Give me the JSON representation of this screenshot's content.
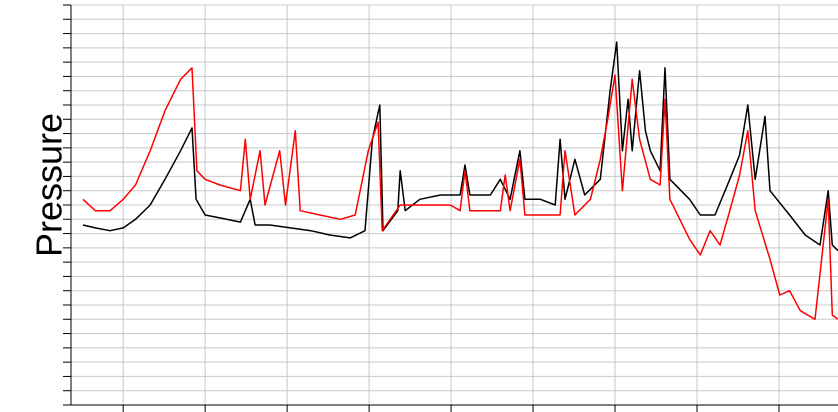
{
  "chart_data": {
    "type": "line",
    "ylabel": "Pressure",
    "xlim": [
      -0.49,
      8.72
    ],
    "xticks": [
      0,
      1,
      2,
      3,
      4,
      5,
      6,
      7,
      8
    ],
    "ylim": [
      0,
      14
    ],
    "yticks": [
      0,
      0.5,
      1,
      1.5,
      2,
      2.5,
      3,
      3.5,
      4,
      4.5,
      5,
      5.5,
      6,
      6.5,
      7,
      7.5,
      8,
      8.5,
      9,
      9.5,
      10,
      10.5,
      11,
      11.5,
      12,
      12.5,
      13,
      13.5,
      14
    ],
    "grid": true,
    "series": [
      {
        "color": "#000000",
        "x": [
          -0.49,
          -0.34,
          -0.16,
          0,
          0.15,
          0.33,
          0.51,
          0.7,
          0.84,
          0.89,
          1.0,
          1.18,
          1.43,
          1.55,
          1.61,
          1.79,
          2.04,
          2.29,
          2.52,
          2.77,
          2.95,
          3.04,
          3.13,
          3.17,
          3.35,
          3.38,
          3.44,
          3.62,
          3.87,
          4.11,
          4.17,
          4.23,
          4.48,
          4.6,
          4.72,
          4.84,
          4.9,
          5.09,
          5.27,
          5.33,
          5.39,
          5.51,
          5.63,
          5.82,
          5.94,
          6.02,
          6.09,
          6.16,
          6.21,
          6.3,
          6.37,
          6.43,
          6.55,
          6.61,
          6.67,
          6.91,
          7.04,
          7.22,
          7.4,
          7.52,
          7.62,
          7.71,
          7.83,
          7.89,
          8.13,
          8.32,
          8.5,
          8.6,
          8.65,
          8.72
        ],
        "values": [
          6.3,
          6.2,
          6.1,
          6.2,
          6.5,
          7.0,
          7.9,
          8.9,
          9.7,
          7.2,
          6.65,
          6.55,
          6.4,
          7.2,
          6.3,
          6.3,
          6.2,
          6.1,
          5.95,
          5.85,
          6.1,
          9.3,
          10.5,
          6.1,
          6.8,
          8.2,
          6.8,
          7.2,
          7.35,
          7.35,
          8.4,
          7.35,
          7.35,
          7.9,
          7.2,
          8.9,
          7.2,
          7.2,
          7.0,
          9.3,
          7.2,
          8.6,
          7.35,
          7.9,
          11.0,
          12.7,
          8.9,
          10.7,
          8.9,
          11.7,
          9.6,
          8.9,
          8.2,
          11.8,
          7.9,
          7.2,
          6.65,
          6.65,
          7.9,
          8.75,
          10.5,
          7.9,
          10.1,
          7.5,
          6.65,
          5.95,
          5.6,
          7.5,
          5.6,
          5.4
        ]
      },
      {
        "color": "#ff0000",
        "x": [
          -0.49,
          -0.34,
          -0.16,
          0,
          0.15,
          0.33,
          0.51,
          0.7,
          0.84,
          0.9,
          1.0,
          1.18,
          1.43,
          1.49,
          1.55,
          1.67,
          1.73,
          1.91,
          1.98,
          2.1,
          2.16,
          2.4,
          2.65,
          2.83,
          2.99,
          3.11,
          3.16,
          3.38,
          3.62,
          3.99,
          4.11,
          4.17,
          4.23,
          4.6,
          4.66,
          4.72,
          4.84,
          4.9,
          5.15,
          5.33,
          5.39,
          5.51,
          5.7,
          5.82,
          5.91,
          6.0,
          6.09,
          6.21,
          6.3,
          6.43,
          6.55,
          6.61,
          6.67,
          6.79,
          6.91,
          7.04,
          7.16,
          7.28,
          7.4,
          7.52,
          7.62,
          7.71,
          7.89,
          8.01,
          8.13,
          8.26,
          8.44,
          8.6,
          8.65,
          8.72
        ],
        "values": [
          7.2,
          6.8,
          6.8,
          7.2,
          7.7,
          8.9,
          10.3,
          11.4,
          11.8,
          8.2,
          7.9,
          7.7,
          7.5,
          9.3,
          7.2,
          8.9,
          7.0,
          8.9,
          7.0,
          9.6,
          6.8,
          6.65,
          6.5,
          6.65,
          8.9,
          9.9,
          6.1,
          7.0,
          7.0,
          7.0,
          6.8,
          8.2,
          6.8,
          6.8,
          8.05,
          6.8,
          8.6,
          6.65,
          6.65,
          6.65,
          8.9,
          6.65,
          7.2,
          8.6,
          9.97,
          11.55,
          7.5,
          11.4,
          9.3,
          7.9,
          7.7,
          10.7,
          7.2,
          6.5,
          5.8,
          5.25,
          6.1,
          5.6,
          6.8,
          8.05,
          9.6,
          6.8,
          5.1,
          3.85,
          4.0,
          3.3,
          3.0,
          7.2,
          3.15,
          3.0
        ]
      }
    ]
  }
}
